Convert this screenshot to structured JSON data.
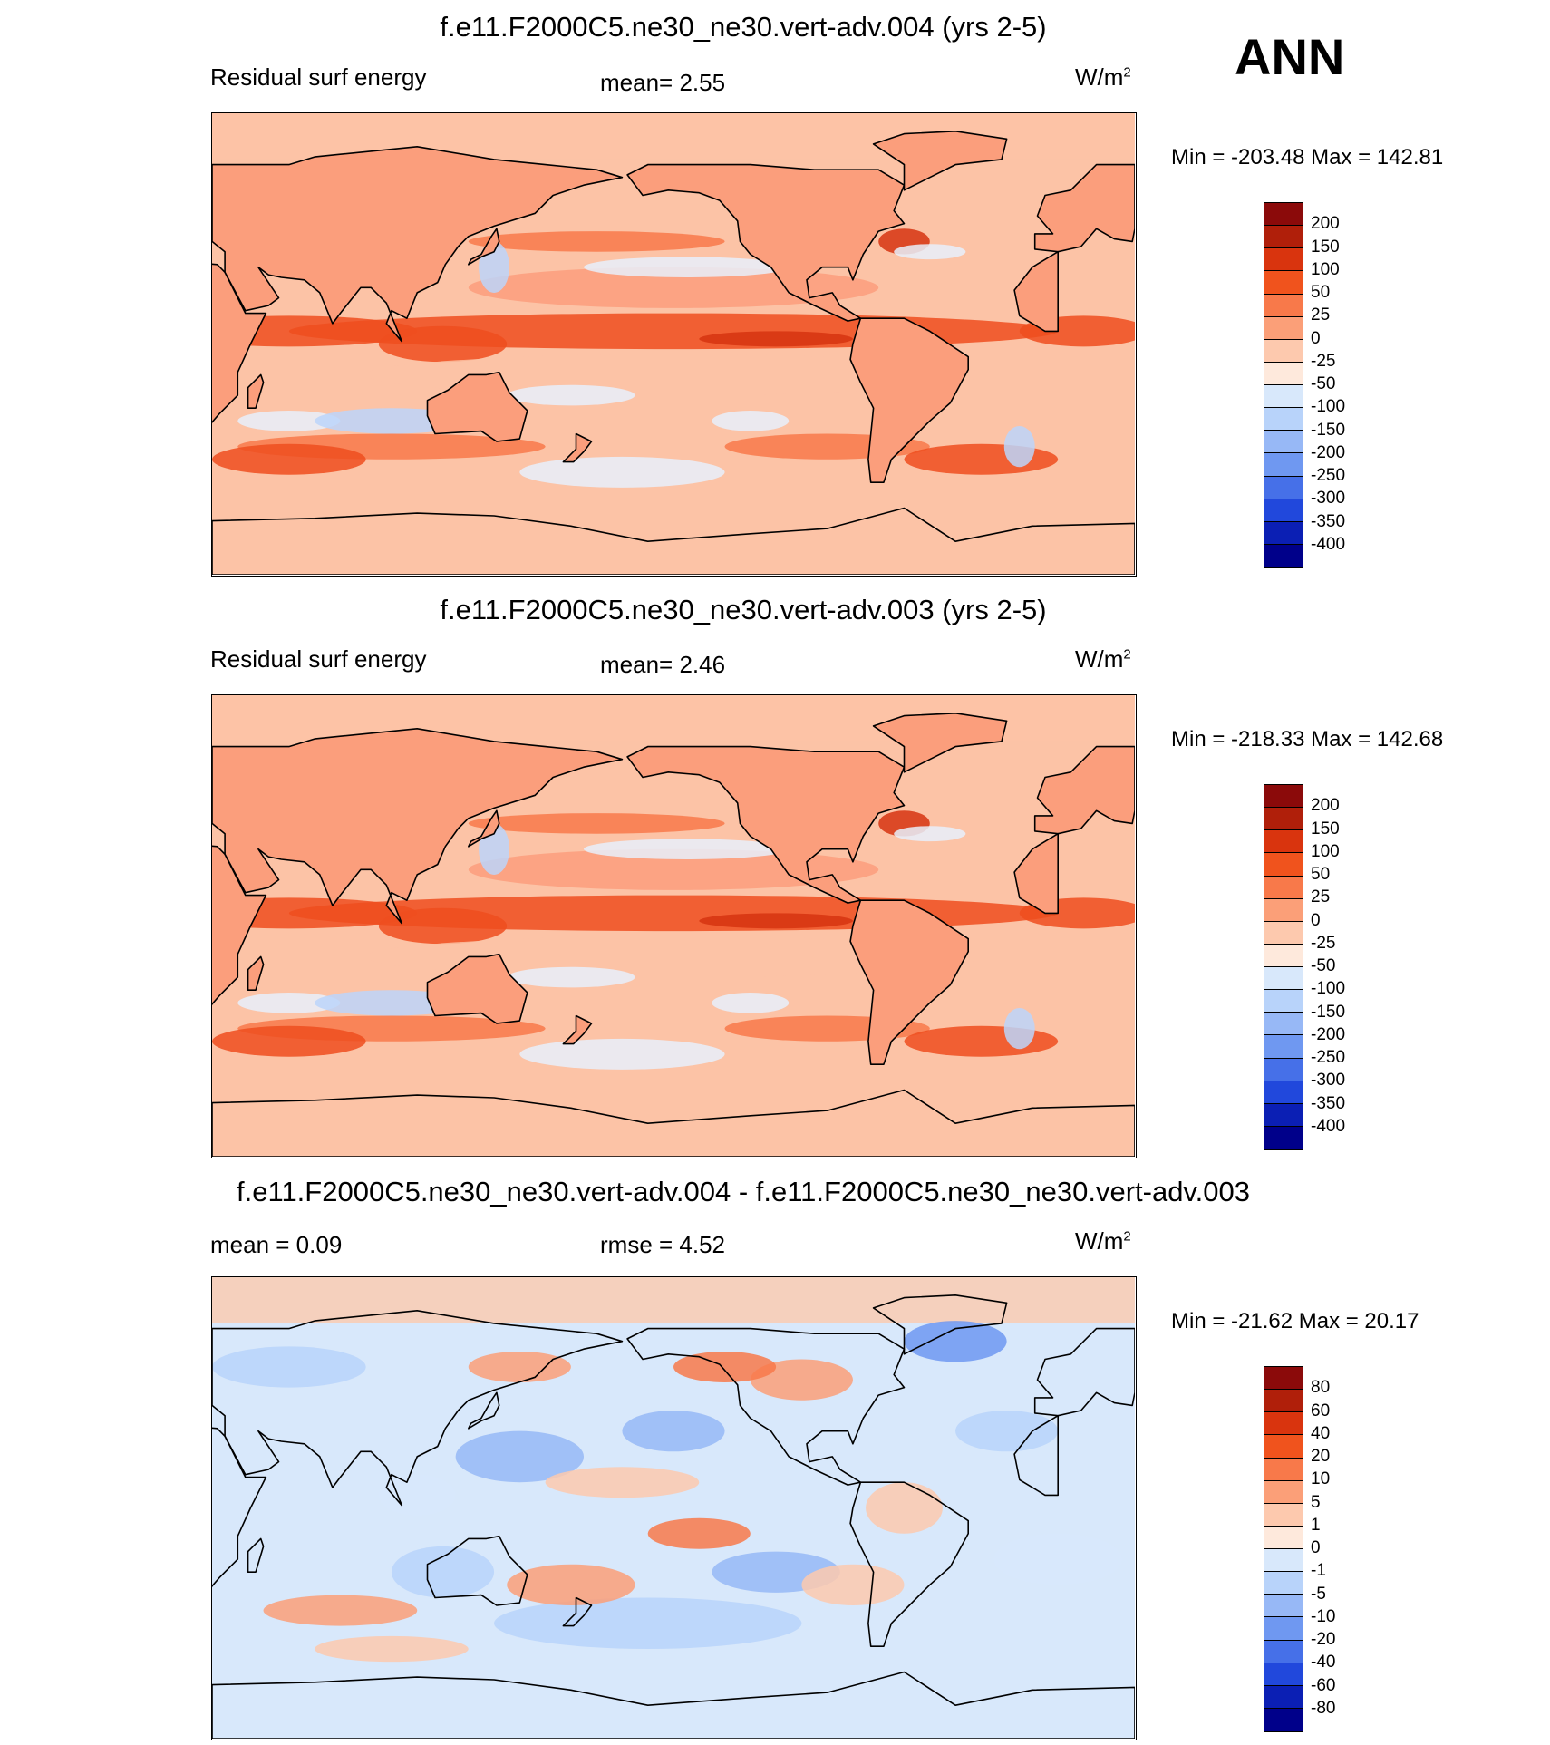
{
  "season_label": "ANN",
  "panels": [
    {
      "title": "f.e11.F2000C5.ne30_ne30.vert-adv.004 (yrs 2-5)",
      "left_label": "Residual surf energy",
      "center_label": "mean=   2.55",
      "units_base": "W/m",
      "units_exp": "2",
      "minmax": "Min = -203.48 Max = 142.81",
      "colorbar": {
        "labels": [
          "200",
          "150",
          "100",
          "50",
          "25",
          "0",
          "-25",
          "-50",
          "-100",
          "-150",
          "-200",
          "-250",
          "-300",
          "-350",
          "-400"
        ],
        "colors": [
          "#8b0a0a",
          "#b01f0a",
          "#d9340e",
          "#f0531d",
          "#f8794a",
          "#fb9f78",
          "#fdc9ae",
          "#fee9dc",
          "#d8e8fb",
          "#b8d3fa",
          "#97b8f6",
          "#6f98f1",
          "#4670e8",
          "#2148dc",
          "#0b1fb4",
          "#00008a"
        ]
      },
      "map_palette": [
        "#fcc3a6",
        "#fb9e7c",
        "#f8794a",
        "#ef4e1e",
        "#d63411",
        "#e8f0fc",
        "#bcd5fa",
        "#8fb2f5"
      ]
    },
    {
      "title": "f.e11.F2000C5.ne30_ne30.vert-adv.003 (yrs 2-5)",
      "left_label": "Residual surf energy",
      "center_label": "mean=   2.46",
      "units_base": "W/m",
      "units_exp": "2",
      "minmax": "Min = -218.33 Max = 142.68",
      "colorbar": {
        "labels": [
          "200",
          "150",
          "100",
          "50",
          "25",
          "0",
          "-25",
          "-50",
          "-100",
          "-150",
          "-200",
          "-250",
          "-300",
          "-350",
          "-400"
        ],
        "colors": [
          "#8b0a0a",
          "#b01f0a",
          "#d9340e",
          "#f0531d",
          "#f8794a",
          "#fb9f78",
          "#fdc9ae",
          "#fee9dc",
          "#d8e8fb",
          "#b8d3fa",
          "#97b8f6",
          "#6f98f1",
          "#4670e8",
          "#2148dc",
          "#0b1fb4",
          "#00008a"
        ]
      },
      "map_palette": [
        "#fcc3a6",
        "#fb9e7c",
        "#f8794a",
        "#ef4e1e",
        "#d63411",
        "#e8f0fc",
        "#bcd5fa",
        "#8fb2f5"
      ]
    },
    {
      "title": "f.e11.F2000C5.ne30_ne30.vert-adv.004 - f.e11.F2000C5.ne30_ne30.vert-adv.003",
      "left_label": "mean =   0.09",
      "center_label": "rmse =   4.52",
      "units_base": "W/m",
      "units_exp": "2",
      "minmax": "Min = -21.62 Max =  20.17",
      "colorbar": {
        "labels": [
          "80",
          "60",
          "40",
          "20",
          "10",
          "5",
          "1",
          "0",
          "-1",
          "-5",
          "-10",
          "-20",
          "-40",
          "-60",
          "-80"
        ],
        "colors": [
          "#8b0a0a",
          "#b01f0a",
          "#d9340e",
          "#f0531d",
          "#f8794a",
          "#fb9f78",
          "#fdc9ae",
          "#fee9dc",
          "#d8e8fb",
          "#b8d3fa",
          "#97b8f6",
          "#6f98f1",
          "#4670e8",
          "#2148dc",
          "#0b1fb4",
          "#00008a"
        ]
      },
      "map_palette": [
        "#d8e8fb",
        "#b8d3fa",
        "#97b8f6",
        "#6f98f1",
        "#fdc9ae",
        "#fb9f78",
        "#f8794a",
        "#fee9dc"
      ]
    }
  ]
}
